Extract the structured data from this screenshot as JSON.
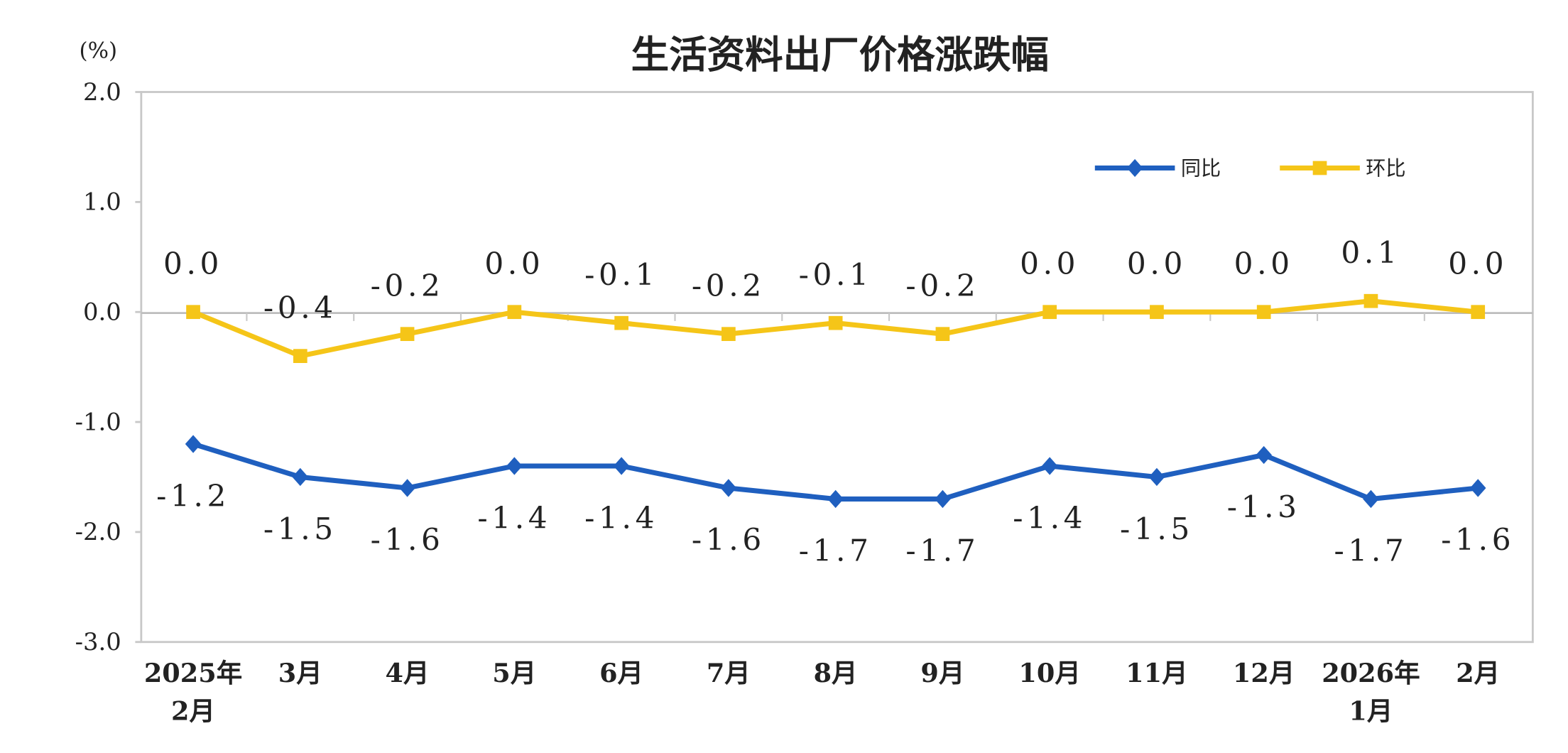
{
  "chart_data": {
    "type": "line",
    "title": "生活资料出厂价格涨跌幅",
    "ylabel": "(%)",
    "ylim": [
      -3.0,
      2.0
    ],
    "yticks": [
      "2.0",
      "1.0",
      "0.0",
      "-1.0",
      "-2.0",
      "-3.0"
    ],
    "ytick_values": [
      2.0,
      1.0,
      0.0,
      -1.0,
      -2.0,
      -3.0
    ],
    "categories": [
      [
        "2025年",
        "2月"
      ],
      [
        "3月"
      ],
      [
        "4月"
      ],
      [
        "5月"
      ],
      [
        "6月"
      ],
      [
        "7月"
      ],
      [
        "8月"
      ],
      [
        "9月"
      ],
      [
        "10月"
      ],
      [
        "11月"
      ],
      [
        "12月"
      ],
      [
        "2026年",
        "1月"
      ],
      [
        "2月"
      ]
    ],
    "grid": false,
    "legend_position": "top-right",
    "series": [
      {
        "name": "同比",
        "color": "#1f5fbf",
        "marker": "diamond",
        "values": [
          -1.2,
          -1.5,
          -1.6,
          -1.4,
          -1.4,
          -1.6,
          -1.7,
          -1.7,
          -1.4,
          -1.5,
          -1.3,
          -1.7,
          -1.6
        ],
        "labels": [
          "-1.2",
          "-1.5",
          "-1.6",
          "-1.4",
          "-1.4",
          "-1.6",
          "-1.7",
          "-1.7",
          "-1.4",
          "-1.5",
          "-1.3",
          "-1.7",
          "-1.6"
        ]
      },
      {
        "name": "环比",
        "color": "#f5c518",
        "marker": "square",
        "values": [
          0.0,
          -0.4,
          -0.2,
          0.0,
          -0.1,
          -0.2,
          -0.1,
          -0.2,
          0.0,
          0.0,
          0.0,
          0.1,
          0.0
        ],
        "labels": [
          "0.0",
          "-0.4",
          "-0.2",
          "0.0",
          "-0.1",
          "-0.2",
          "-0.1",
          "-0.2",
          "0.0",
          "0.0",
          "0.0",
          "0.1",
          "0.0"
        ]
      }
    ]
  }
}
